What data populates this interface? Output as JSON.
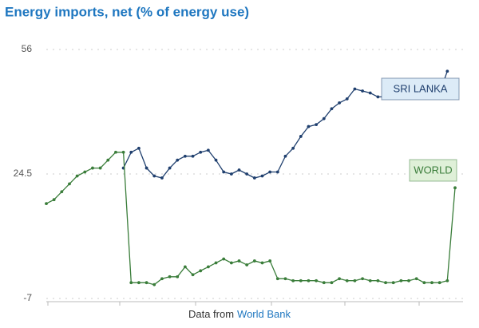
{
  "chart_data": {
    "type": "line",
    "title": "Energy imports, net (% of energy use)",
    "source_prefix": "Data from",
    "source": "World Bank",
    "categories": [
      null,
      null,
      null,
      null,
      null,
      null,
      null,
      null,
      null,
      null,
      null,
      null,
      null,
      null,
      null,
      null,
      null,
      null,
      null,
      null,
      null,
      null,
      null,
      null,
      null,
      null,
      null,
      null,
      null,
      null,
      null,
      null,
      null,
      null,
      null,
      null,
      null,
      null,
      null,
      null,
      null,
      null,
      null,
      null,
      null,
      null,
      null,
      null,
      null,
      null,
      null,
      null,
      null,
      null
    ],
    "ylim": [
      -7,
      56
    ],
    "yticks": [
      -7,
      24.5,
      56
    ],
    "grid": true,
    "series": [
      {
        "name": "SRI LANKA",
        "color": "#1f3f6e",
        "label_bg": "#dcebf7",
        "values": [
          null,
          null,
          null,
          null,
          null,
          null,
          null,
          null,
          null,
          null,
          26,
          30,
          31,
          26,
          24,
          23.5,
          26,
          28,
          29,
          29,
          30,
          30.5,
          28,
          25,
          24.5,
          25.5,
          24.5,
          23.5,
          24,
          25,
          25,
          29,
          31,
          34,
          36.5,
          37,
          38.5,
          41,
          42.5,
          43.5,
          46,
          45.5,
          45,
          44,
          44,
          44,
          45,
          44,
          45,
          45,
          45,
          45,
          50.5,
          null
        ]
      },
      {
        "name": "WORLD",
        "color": "#3a7d3a",
        "label_bg": "#dff0d8",
        "values": [
          17,
          18,
          20,
          22,
          24,
          25,
          26,
          26,
          28,
          30,
          30,
          -3,
          -3,
          -3,
          -3.5,
          -2,
          -1.5,
          -1.5,
          1,
          -1,
          0,
          1,
          2,
          3,
          2,
          2.5,
          1.5,
          2.5,
          2,
          2.5,
          -2,
          -2,
          -2.5,
          -2.5,
          -2.5,
          -2.5,
          -3,
          -3,
          -2,
          -2.5,
          -2.5,
          -2,
          -2.5,
          -2.5,
          -3,
          -3,
          -2.5,
          -2.5,
          -2,
          -3,
          -3,
          -3,
          -2.5,
          21
        ]
      }
    ]
  }
}
